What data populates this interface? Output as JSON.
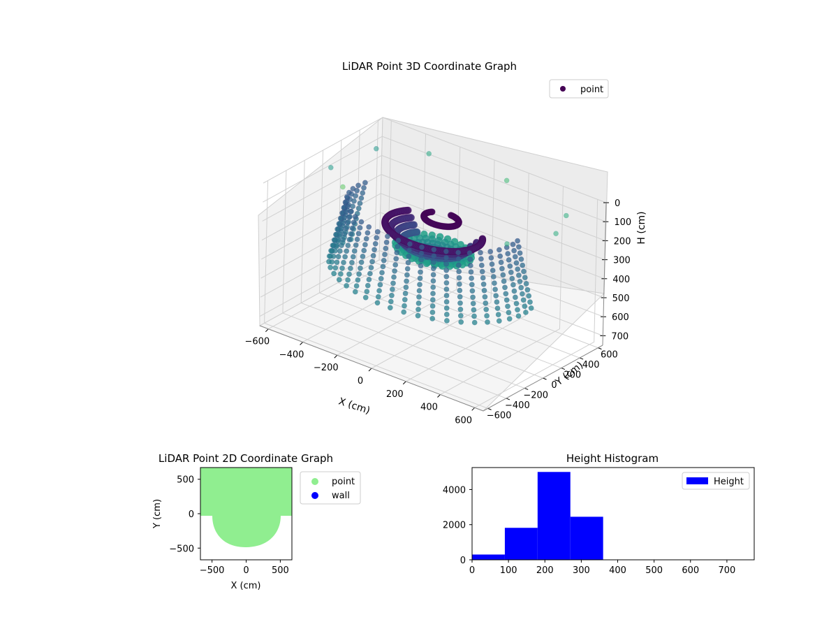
{
  "chart_data": [
    {
      "type": "scatter",
      "projection": "3d",
      "title": "LiDAR Point 3D Coordinate Graph",
      "xlabel": "X (cm)",
      "ylabel": "Y (cm)",
      "zlabel": "H (cm)",
      "xlim": [
        -650,
        650
      ],
      "ylim": [
        -650,
        650
      ],
      "zlim": [
        750,
        0
      ],
      "x_ticks": [
        -600,
        -400,
        -200,
        0,
        200,
        400,
        600
      ],
      "y_ticks": [
        -600,
        -400,
        -200,
        0,
        200,
        400,
        600
      ],
      "z_ticks": [
        0,
        100,
        200,
        300,
        400,
        500,
        600,
        700
      ],
      "legend": [
        "point"
      ],
      "legend_position": "top-right",
      "grid": true,
      "colormap": "viridis",
      "series": [
        {
          "name": "point",
          "description_points": {
            "inner_ring": {
              "radius": 250,
              "height_range": [
                200,
                300
              ],
              "arc_degrees": [
                150,
                390
              ]
            },
            "outer_columns": {
              "radius": 450,
              "height_range": [
                120,
                450
              ],
              "arc_degrees": [
                170,
                370
              ]
            },
            "top_spiral": {
              "radius": 90,
              "height": 160
            },
            "sparse_high_points": [
              {
                "x": -500,
                "y": 300,
                "h": 20
              },
              {
                "x": -300,
                "y": 500,
                "h": 30
              },
              {
                "x": 100,
                "y": 600,
                "h": 60
              },
              {
                "x": 500,
                "y": 500,
                "h": 80
              },
              {
                "x": 600,
                "y": 200,
                "h": 60
              },
              {
                "x": -550,
                "y": -100,
                "h": 30
              },
              {
                "x": -400,
                "y": -250,
                "h": 40
              },
              {
                "x": 450,
                "y": -50,
                "h": 100
              }
            ]
          }
        }
      ]
    },
    {
      "type": "scatter",
      "title": "LiDAR Point 2D Coordinate Graph",
      "xlabel": "X (cm)",
      "ylabel": "Y (cm)",
      "xlim": [
        -670,
        670
      ],
      "ylim": [
        -670,
        670
      ],
      "x_ticks": [
        -500,
        0,
        500
      ],
      "y_ticks": [
        -500,
        0,
        500
      ],
      "legend": [
        "point",
        "wall"
      ],
      "legend_position": "outside-right",
      "series": [
        {
          "name": "point",
          "color": "#90ee90"
        },
        {
          "name": "wall",
          "color": "#0000ff"
        }
      ]
    },
    {
      "type": "bar",
      "title": "Height Histogram",
      "xlabel": "",
      "ylabel": "",
      "xlim": [
        0,
        775
      ],
      "ylim": [
        0,
        5250
      ],
      "x_ticks": [
        0,
        100,
        200,
        300,
        400,
        500,
        600,
        700
      ],
      "y_ticks": [
        0,
        2000,
        4000
      ],
      "legend": [
        "Height"
      ],
      "legend_position": "top-right",
      "series": [
        {
          "name": "Height",
          "color": "#0000ff",
          "bins": [
            {
              "start": 0,
              "end": 90,
              "count": 300
            },
            {
              "start": 90,
              "end": 180,
              "count": 1820
            },
            {
              "start": 180,
              "end": 270,
              "count": 5000
            },
            {
              "start": 270,
              "end": 360,
              "count": 2450
            },
            {
              "start": 360,
              "end": 450,
              "count": 0
            },
            {
              "start": 450,
              "end": 540,
              "count": 0
            },
            {
              "start": 540,
              "end": 630,
              "count": 0
            },
            {
              "start": 630,
              "end": 720,
              "count": 0
            }
          ]
        }
      ]
    }
  ]
}
